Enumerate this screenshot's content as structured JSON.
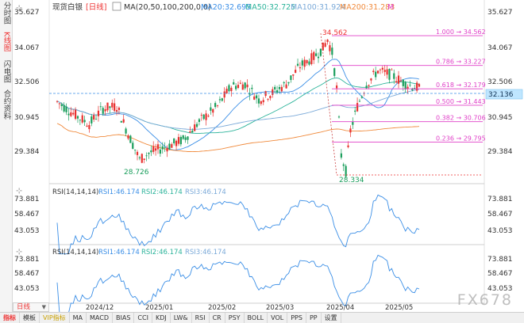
{
  "sidebar": {
    "tabs": [
      {
        "label": "分时图",
        "active": false
      },
      {
        "label": "K线图",
        "active": true
      },
      {
        "label": "闪电图",
        "active": false
      },
      {
        "label": "合约资料",
        "active": false
      }
    ]
  },
  "header": {
    "product": "现货白银",
    "period_tag": "[日线]",
    "ma_label": "MA(20,50,100,200,0,0)",
    "ma_values": [
      {
        "label": "MA20:32.695",
        "color": "#3a8ee6"
      },
      {
        "label": "MA50:32.725",
        "color": "#2bb39a"
      },
      {
        "label": "MA100:31.924",
        "color": "#7aa9d8"
      },
      {
        "label": "MA200:31.283",
        "color": "#f08a3c"
      }
    ],
    "close_icon": "M"
  },
  "price_axis": {
    "ticks": [
      "35.627",
      "34.067",
      "32.506",
      "30.945",
      "29.384"
    ],
    "current_price": "32.136"
  },
  "annotations": {
    "high": "34.562",
    "low": "28.334",
    "prior_low": "28.726"
  },
  "fib_levels": [
    {
      "label": "1.000 → 34.562",
      "value": 34.562
    },
    {
      "label": "0.786 → 33.227",
      "value": 33.227
    },
    {
      "label": "0.618 → 32.179",
      "value": 32.179
    },
    {
      "label": "0.500 → 31.443",
      "value": 31.443
    },
    {
      "label": "0.382 → 30.706",
      "value": 30.706
    },
    {
      "label": "0.236 → 29.795",
      "value": 29.795
    }
  ],
  "rsi_panels": [
    {
      "title": "RSI(14,14,14)",
      "values": [
        "RSI1:46.174",
        "RSI2:46.174",
        "RSI3:46.174"
      ],
      "ticks": [
        "73.881",
        "58.467",
        "43.053"
      ]
    },
    {
      "title": "RSI(14,14,14)",
      "values": [
        "RSI1:46.174",
        "RSI2:46.174",
        "RSI3:46.174"
      ],
      "ticks": [
        "73.881",
        "58.467",
        "43.053"
      ]
    }
  ],
  "time_axis": [
    "2024/12",
    "2025/01",
    "2025/02",
    "2025/03",
    "2025/04",
    "2025/05"
  ],
  "period_selector": "日线",
  "toolbar": {
    "items": [
      "指标",
      "模板",
      "VIP指标",
      "MA",
      "MACD",
      "BIAS",
      "CCI",
      "KDJ",
      "LW&",
      "RSI",
      "CR",
      "PSY",
      "BOLL",
      "VOL",
      "PPS",
      "PP",
      "设置"
    ]
  },
  "watermark": "FX678",
  "colors": {
    "up": "#e8312f",
    "down": "#1a9e5c",
    "fib": "#e040c8",
    "rsi": "#3a8ee6",
    "ma20": "#3a8ee6",
    "ma50": "#2bb39a",
    "ma100": "#7aa9d8",
    "ma200": "#f08a3c",
    "accent": "#e33333"
  }
}
